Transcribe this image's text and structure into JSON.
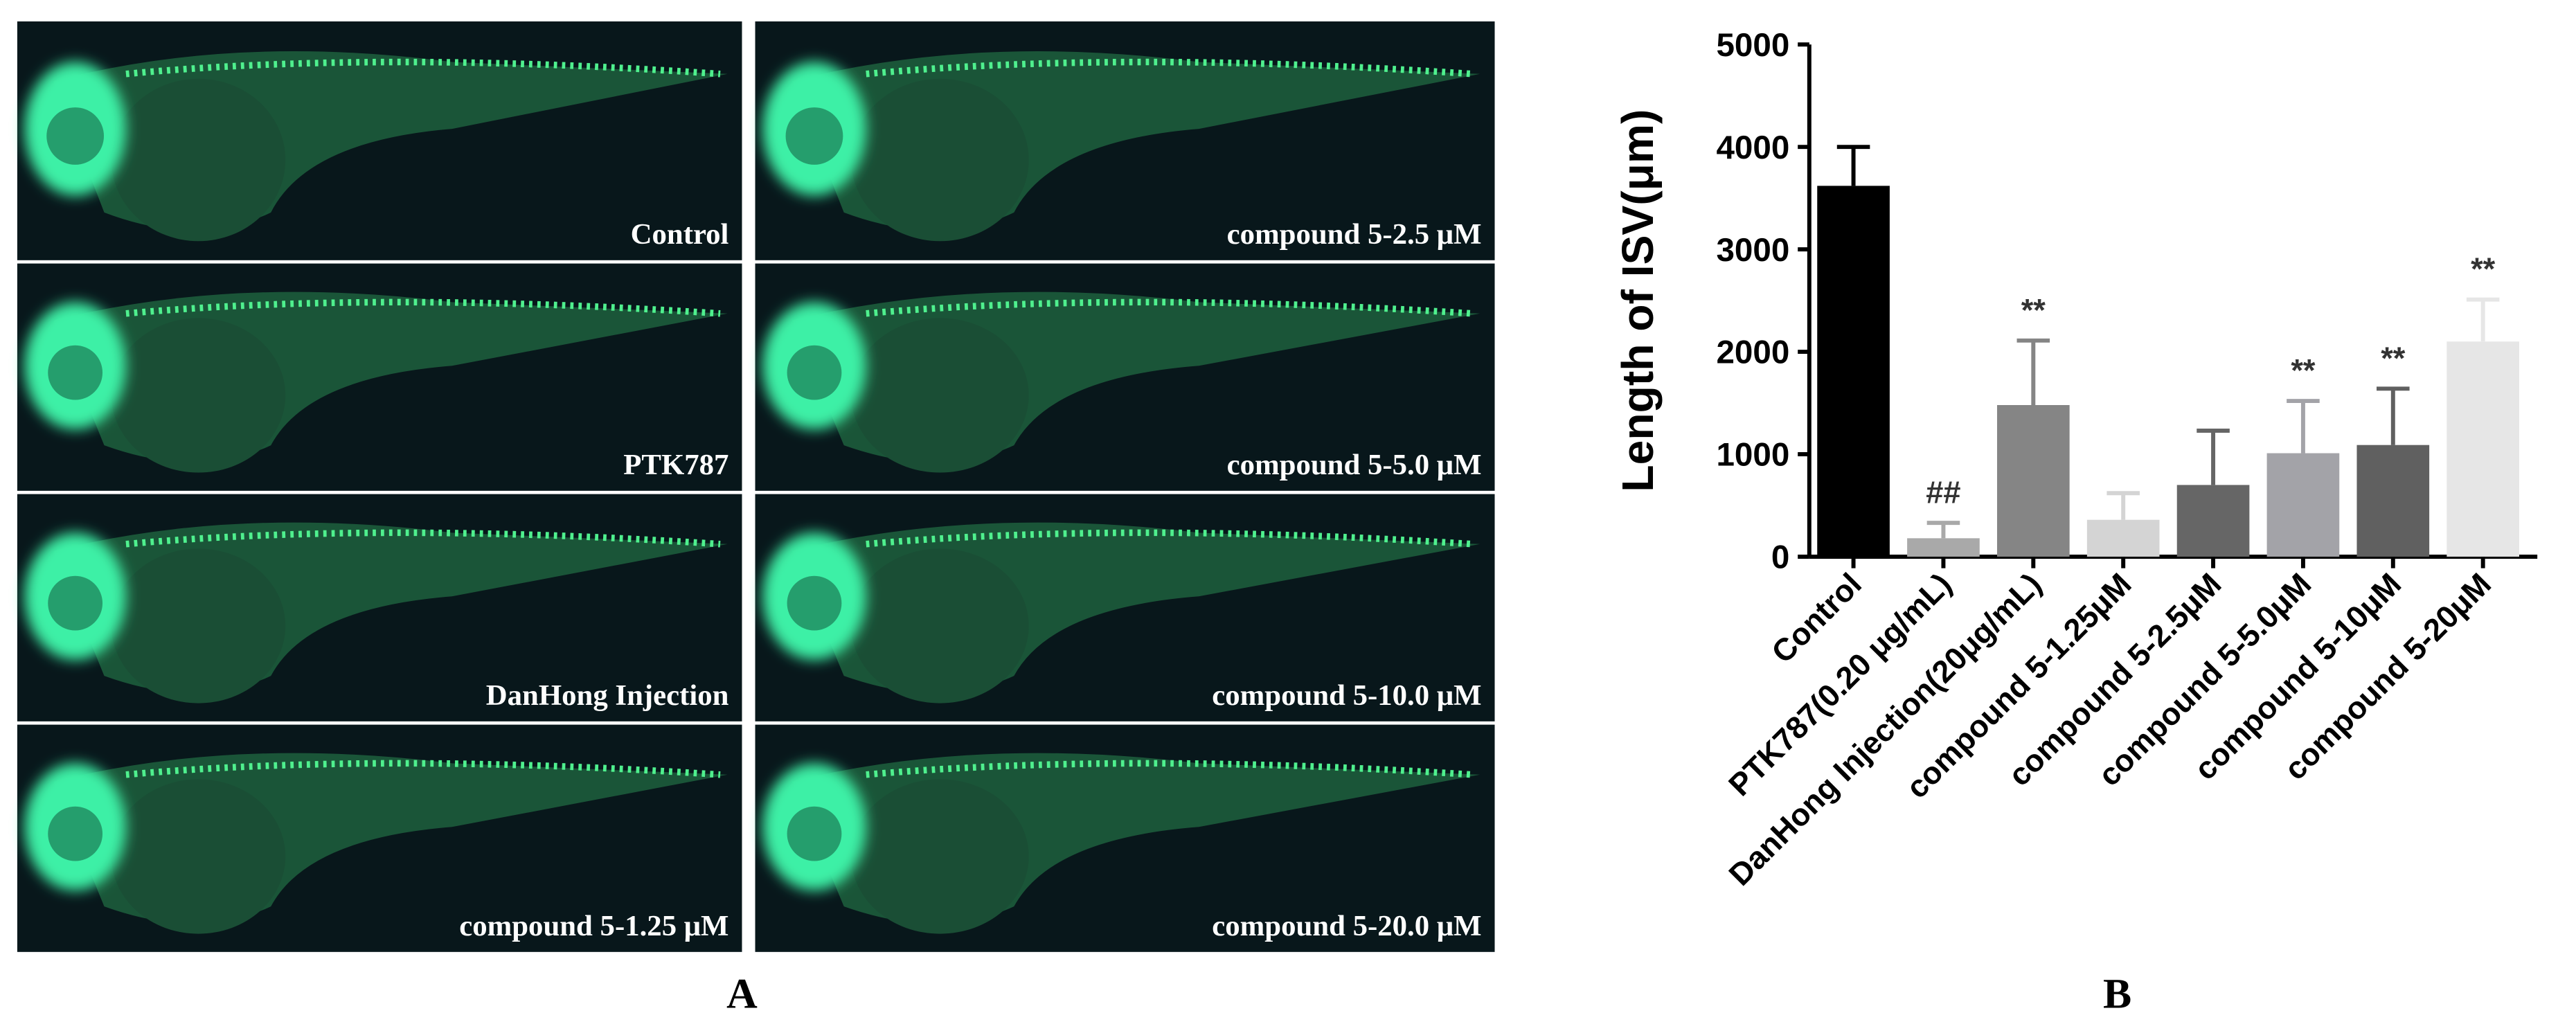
{
  "panel_a": {
    "label": "A",
    "panels": [
      "Control",
      "PTK787",
      "DanHong Injection",
      "compound 5-1.25 μM",
      "compound 5-2.5 μM",
      "compound 5-5.0 μM",
      "compound 5-10.0 μM",
      "compound 5-20.0 μM"
    ]
  },
  "chart_data": {
    "type": "bar",
    "panel_label": "B",
    "y_label": "Length of ISV(μm)",
    "categories": [
      "Control",
      "PTK787(0.20 μg/mL)",
      "DanHong Injection(20μg/mL)",
      "compound 5-1.25μM",
      "compound 5-2.5μM",
      "compound 5-5.0μM",
      "compound 5-10μM",
      "compound 5-20μM"
    ],
    "values": [
      3620,
      180,
      1480,
      360,
      700,
      1010,
      1090,
      2100
    ],
    "errors": [
      380,
      150,
      630,
      260,
      530,
      510,
      550,
      410
    ],
    "colors": [
      "#000000",
      "#a9a9a9",
      "#858585",
      "#d4d4d4",
      "#666666",
      "#a3a3a8",
      "#606060",
      "#e6e6e6"
    ],
    "significance": [
      null,
      "##",
      "**",
      null,
      null,
      "**",
      "**",
      "**"
    ],
    "ylim": [
      0,
      5000
    ],
    "yticks": [
      0,
      1000,
      2000,
      3000,
      4000,
      5000
    ],
    "grid": false
  }
}
